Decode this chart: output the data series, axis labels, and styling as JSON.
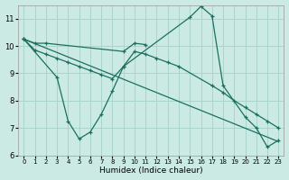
{
  "xlabel": "Humidex (Indice chaleur)",
  "xlim": [
    -0.5,
    23.5
  ],
  "ylim": [
    6,
    11.5
  ],
  "yticks": [
    6,
    7,
    8,
    9,
    10,
    11
  ],
  "xticks": [
    0,
    1,
    2,
    3,
    4,
    5,
    6,
    7,
    8,
    9,
    10,
    11,
    12,
    13,
    14,
    15,
    16,
    17,
    18,
    19,
    20,
    21,
    22,
    23
  ],
  "background_color": "#cceae4",
  "grid_color": "#aad4cc",
  "line_color": "#1a7060",
  "curve1_x": [
    0,
    1,
    2,
    9,
    10,
    11
  ],
  "curve1_y": [
    10.25,
    10.1,
    10.1,
    9.8,
    10.1,
    10.05
  ],
  "curve2_x": [
    0,
    3,
    4,
    5,
    6,
    7,
    8,
    9,
    15,
    16,
    17,
    18,
    20,
    21,
    22,
    23
  ],
  "curve2_y": [
    10.25,
    8.85,
    7.25,
    6.6,
    6.85,
    7.5,
    8.35,
    9.25,
    11.05,
    11.45,
    11.1,
    8.55,
    7.4,
    7.0,
    6.3,
    6.55
  ],
  "curve3_x": [
    0,
    23
  ],
  "curve3_y": [
    10.25,
    6.5
  ],
  "curve4_x": [
    0,
    1,
    2,
    3,
    4,
    5,
    6,
    7,
    8,
    9,
    10,
    11,
    12,
    13,
    14,
    17,
    18,
    19,
    20,
    21,
    22,
    23
  ],
  "curve4_y": [
    10.25,
    9.85,
    9.7,
    9.55,
    9.4,
    9.25,
    9.1,
    8.95,
    8.8,
    9.25,
    9.8,
    9.7,
    9.55,
    9.4,
    9.25,
    8.55,
    8.3,
    8.0,
    7.75,
    7.5,
    7.25,
    7.0
  ]
}
